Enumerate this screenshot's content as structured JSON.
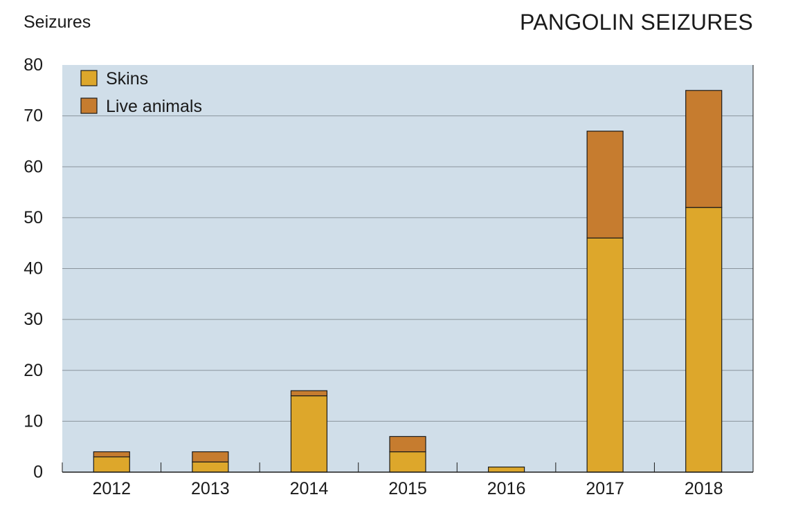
{
  "chart_data": {
    "type": "bar",
    "stacked": true,
    "title": "PANGOLIN SEIZURES",
    "ylabel": "Seizures",
    "xlabel": "",
    "categories": [
      "2012",
      "2013",
      "2014",
      "2015",
      "2016",
      "2017",
      "2018"
    ],
    "series": [
      {
        "name": "Skins",
        "values": [
          3,
          2,
          15,
          4,
          1,
          46,
          52
        ],
        "color": "#DDA72B"
      },
      {
        "name": "Live animals",
        "values": [
          1,
          2,
          1,
          3,
          0,
          21,
          23
        ],
        "color": "#C67C2F"
      }
    ],
    "ylim": [
      0,
      80
    ],
    "yticks": [
      0,
      10,
      20,
      30,
      40,
      50,
      60,
      70,
      80
    ],
    "grid": true,
    "legend": "top-left",
    "plot_background": "#D0DEE9",
    "gridline_color": "#8A949C"
  }
}
